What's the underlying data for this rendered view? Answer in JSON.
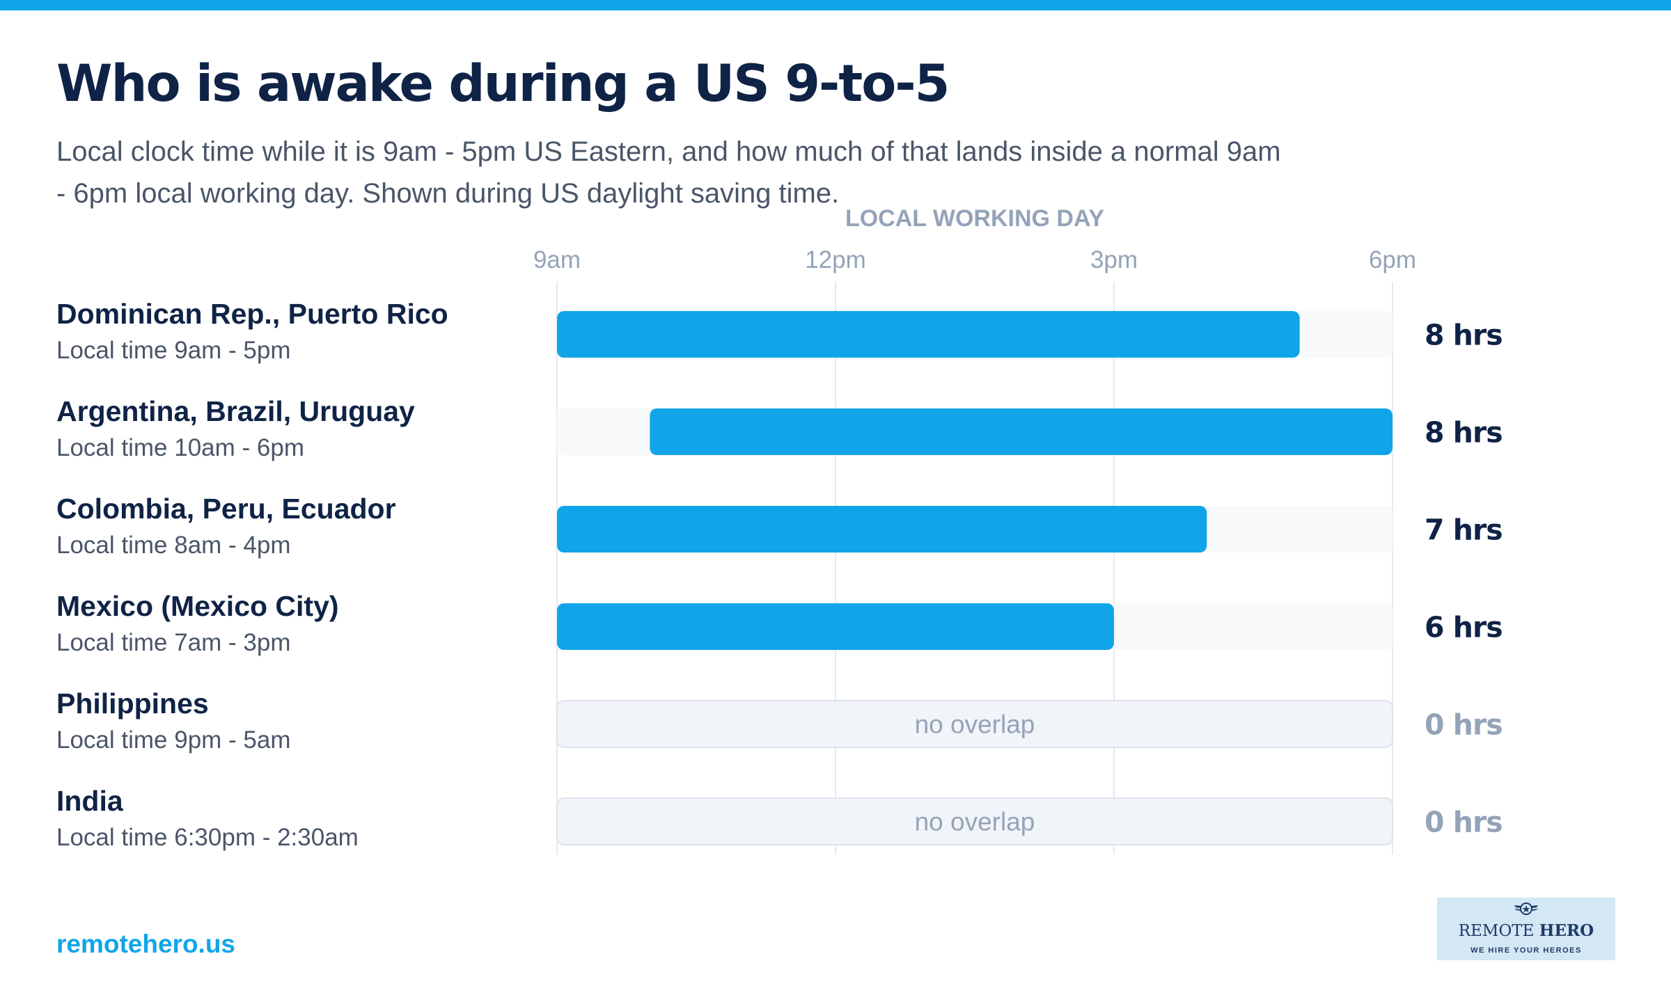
{
  "header": {
    "title": "Who is awake during a US 9-to-5",
    "subtitle": "Local clock time while it is 9am - 5pm US Eastern, and how much of that lands inside a normal 9am - 6pm local working day. Shown during US daylight saving time."
  },
  "colors": {
    "accent": "#10a5e8",
    "navy": "#0f2346",
    "muted": "#4a5568",
    "axis_text": "#94a3b8",
    "track": "#f7f9fb",
    "no_overlap_bg": "#f1f4f8"
  },
  "chart_data": {
    "type": "bar",
    "orientation": "horizontal-range",
    "axis_title": "LOCAL WORKING DAY",
    "x_ticks": [
      "9am",
      "12pm",
      "3pm",
      "6pm"
    ],
    "x_range_hours": [
      9,
      18
    ],
    "empty_label": "no overlap",
    "rows": [
      {
        "country": "Dominican Rep., Puerto Rico",
        "local_time": "Local time 9am - 5pm",
        "start": 9,
        "end": 17,
        "total": "8 hrs"
      },
      {
        "country": "Argentina, Brazil, Uruguay",
        "local_time": "Local time 10am - 6pm",
        "start": 10,
        "end": 18,
        "total": "8 hrs"
      },
      {
        "country": "Colombia, Peru, Ecuador",
        "local_time": "Local time 8am - 4pm",
        "start": 9,
        "end": 16,
        "total": "7 hrs"
      },
      {
        "country": "Mexico (Mexico City)",
        "local_time": "Local time 7am - 3pm",
        "start": 9,
        "end": 15,
        "total": "6 hrs"
      },
      {
        "country": "Philippines",
        "local_time": "Local time 9pm - 5am",
        "start": null,
        "end": null,
        "total": "0 hrs"
      },
      {
        "country": "India",
        "local_time": "Local time 6:30pm - 2:30am",
        "start": null,
        "end": null,
        "total": "0 hrs"
      }
    ]
  },
  "footer": {
    "url": "remotehero.us",
    "logo_name_light": "REMOTE",
    "logo_name_bold": "HERO",
    "logo_tagline": "WE HIRE YOUR HEROES",
    "logo_icon": "winged-star-icon"
  }
}
